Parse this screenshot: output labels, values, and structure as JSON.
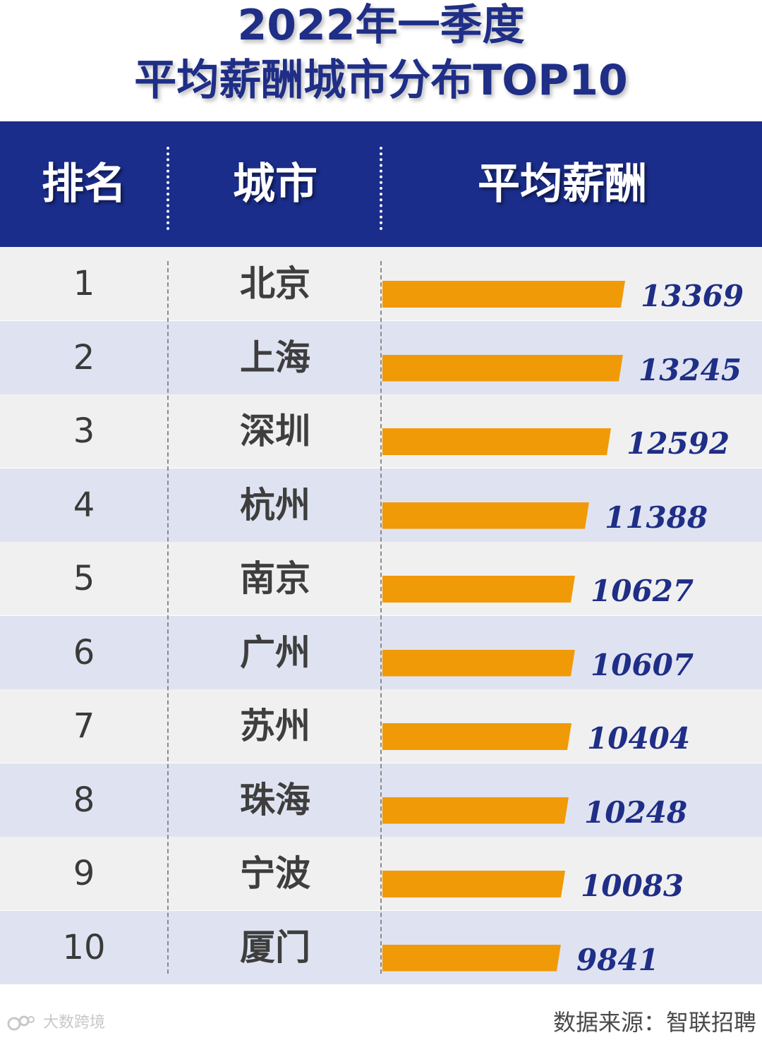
{
  "title": {
    "line1": "2022年一季度",
    "line2": "平均薪酬城市分布TOP10"
  },
  "header": {
    "rank": "排名",
    "city": "城市",
    "salary": "平均薪酬"
  },
  "colors": {
    "header_bg": "#1a2d8a",
    "title": "#1f2e86",
    "bar": "#f19a07",
    "row_odd": "#f0f0f0",
    "row_even": "#dfe3f1",
    "value_text": "#1f2e86"
  },
  "chart_data": {
    "type": "bar",
    "orientation": "horizontal",
    "title": "2022年一季度 平均薪酬城市分布TOP10",
    "columns": [
      "排名",
      "城市",
      "平均薪酬"
    ],
    "ranks": [
      "1",
      "2",
      "3",
      "4",
      "5",
      "6",
      "7",
      "8",
      "9",
      "10"
    ],
    "categories": [
      "北京",
      "上海",
      "深圳",
      "杭州",
      "南京",
      "广州",
      "苏州",
      "珠海",
      "宁波",
      "厦门"
    ],
    "values": [
      13369,
      13245,
      12592,
      11388,
      10627,
      10607,
      10404,
      10248,
      10083,
      9841
    ],
    "legend": false,
    "grid": false
  },
  "footer": {
    "source": "数据来源：智联招聘",
    "watermark": "大数跨境"
  },
  "icons": {
    "watermark_logo": "weibo-style-logo-icon"
  }
}
